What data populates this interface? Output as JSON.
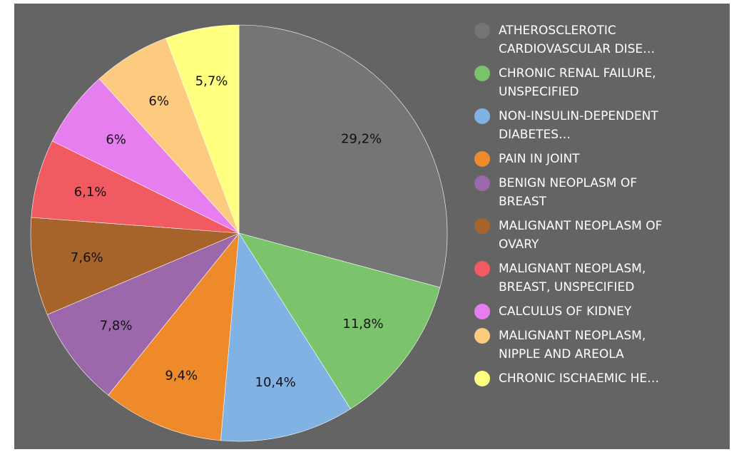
{
  "chart_data": {
    "type": "pie",
    "categories": [
      "ATHEROSCLEROTIC CARDIOVASCULAR DISE…",
      "CHRONIC RENAL FAILURE, UNSPECIFIED",
      "NON-INSULIN-DEPENDENT DIABETES…",
      "PAIN IN JOINT",
      "BENIGN NEOPLASM OF BREAST",
      "MALIGNANT NEOPLASM OF OVARY",
      "MALIGNANT NEOPLASM, BREAST, UNSPECIFIED",
      "CALCULUS OF KIDNEY",
      "MALIGNANT NEOPLASM, NIPPLE AND AREOLA",
      "CHRONIC ISCHAEMIC HE…"
    ],
    "values": [
      29.2,
      11.8,
      10.4,
      9.4,
      7.8,
      7.6,
      6.1,
      6,
      6,
      5.7
    ],
    "value_labels": [
      "29,2%",
      "11,8%",
      "10,4%",
      "9,4%",
      "7,8%",
      "7,6%",
      "6,1%",
      "6%",
      "6%",
      "5,7%"
    ],
    "colors": [
      "#757575",
      "#7bc46b",
      "#80b3e3",
      "#ee8a2a",
      "#9d67ab",
      "#a6632a",
      "#f05a60",
      "#e67ef0",
      "#fdcb80",
      "#ffff80"
    ],
    "legend": "right"
  }
}
